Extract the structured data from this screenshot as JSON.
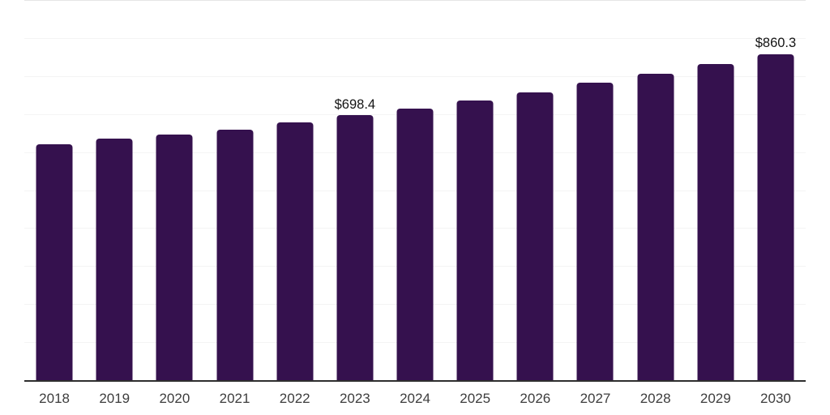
{
  "chart": {
    "background_color": "#FFFFFF",
    "bar_color": "#35114E",
    "axis_line_color": "#2E2E2E",
    "gridline_color": "#F4F4F4",
    "top_gridline_color": "#E6E6E6",
    "data_label_color": "#141414",
    "tick_label_color": "#3D3D3D"
  },
  "chart_data": {
    "type": "bar",
    "title": "",
    "xlabel": "",
    "ylabel": "",
    "categories": [
      "2018",
      "2019",
      "2020",
      "2021",
      "2022",
      "2023",
      "2024",
      "2025",
      "2026",
      "2027",
      "2028",
      "2029",
      "2030"
    ],
    "values": [
      623,
      638,
      649,
      662,
      680,
      698.4,
      717,
      738,
      759,
      784,
      808,
      834,
      860.3
    ],
    "data_labels": [
      "",
      "",
      "",
      "",
      "",
      "$698.4",
      "",
      "",
      "",
      "",
      "",
      "",
      "$860.3"
    ],
    "ylim": [
      0,
      1000
    ],
    "gridline_interval": 100,
    "grid": true,
    "y_tick_labels_visible": false,
    "legend": "none"
  }
}
